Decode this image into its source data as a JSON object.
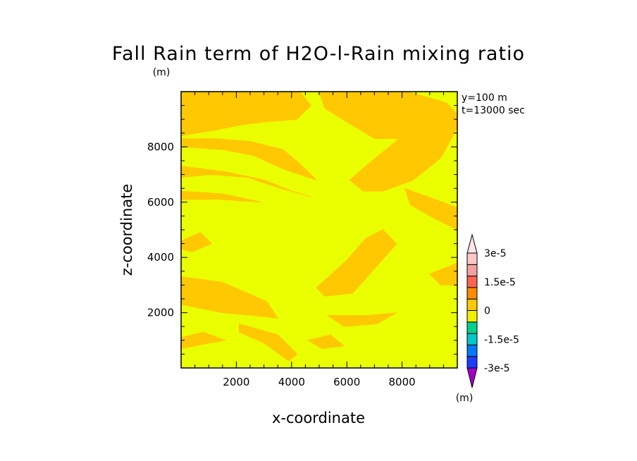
{
  "chart_data": {
    "type": "heatmap",
    "title": "Fall Rain term of H2O-l-Rain mixing ratio",
    "title_unit": "(m)",
    "xlabel": "x-coordinate",
    "ylabel": "z-coordinate",
    "xlim": [
      0,
      10000
    ],
    "ylim": [
      0,
      10000
    ],
    "xticks": [
      2000,
      4000,
      6000,
      8000
    ],
    "yticks": [
      2000,
      4000,
      6000,
      8000
    ],
    "xtick_labels": [
      "2000",
      "4000",
      "6000",
      "8000"
    ],
    "ytick_labels": [
      "2000",
      "4000",
      "6000",
      "8000"
    ],
    "annotations": [
      "y=100 m",
      "t=13000 sec"
    ],
    "colorbar": {
      "unit": "(m)",
      "tick_labels": [
        "3e-5",
        "1.5e-5",
        "0",
        "-1.5e-5",
        "-3e-5"
      ],
      "levels": [
        -3e-05,
        -2.25e-05,
        -1.5e-05,
        -7.5e-06,
        0,
        7.5e-06,
        1.5e-05,
        2.25e-05,
        3e-05
      ],
      "colors_bottom_to_top": [
        "#a000c8",
        "#1e3cff",
        "#0078ff",
        "#00c8c8",
        "#00d28c",
        "#f0f000",
        "#ffc800",
        "#ff8c00",
        "#ff6450",
        "#f5a0a0",
        "#ffc8c8",
        "#ffe6e6"
      ]
    },
    "background_value_color": "#eaff00",
    "positive_region_color": "#ffc800"
  }
}
